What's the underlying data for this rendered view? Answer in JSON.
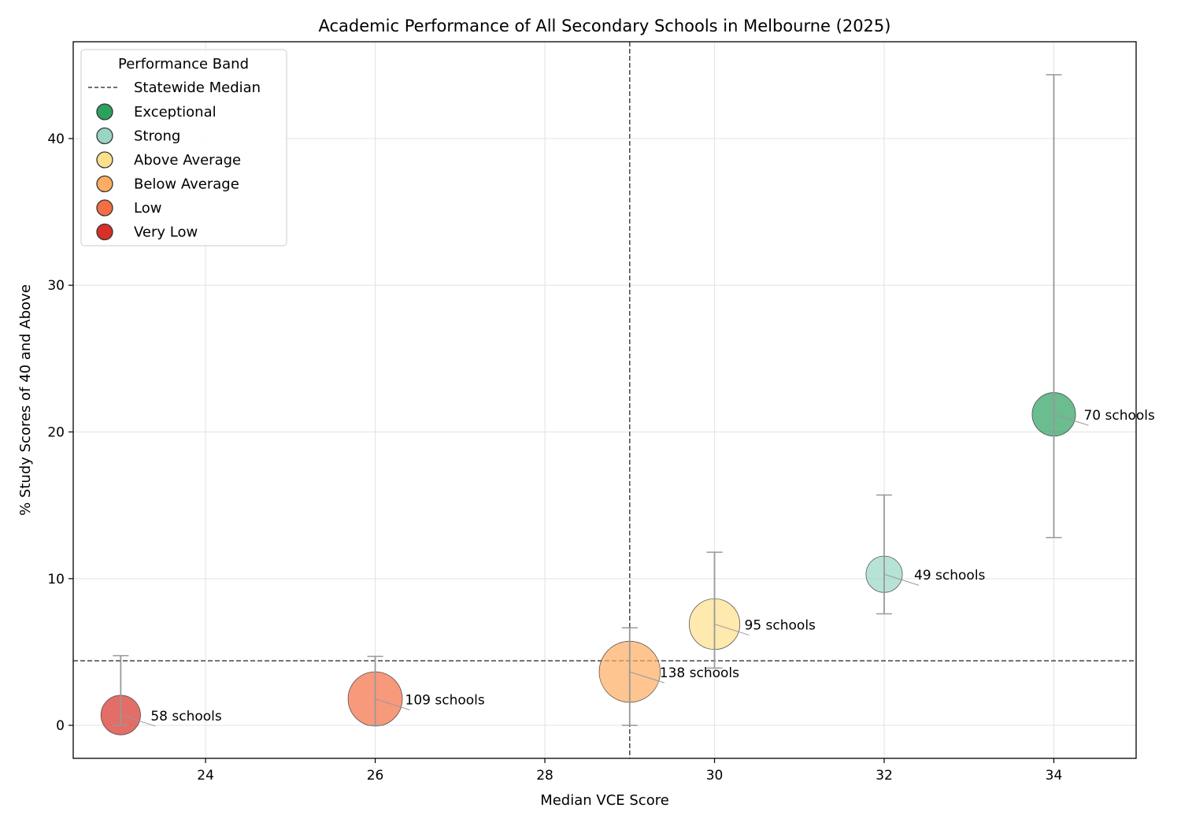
{
  "chart_data": {
    "type": "scatter",
    "title": "Academic Performance of All Secondary Schools in Melbourne (2025)",
    "xlabel": "Median VCE Score",
    "ylabel": "% Study Scores of 40 and Above",
    "xlim": [
      22.44,
      34.97
    ],
    "ylim": [
      -2.25,
      46.6
    ],
    "xticks": [
      24,
      26,
      28,
      30,
      32,
      34
    ],
    "yticks": [
      0,
      10,
      20,
      30,
      40
    ],
    "grid": true,
    "legend": {
      "title": "Performance Band",
      "placement": "top-left",
      "median_label": "Statewide Median",
      "entries": [
        {
          "label": "Exceptional",
          "color": "#2ca05f"
        },
        {
          "label": "Strong",
          "color": "#99d5c4"
        },
        {
          "label": "Above Average",
          "color": "#fde08b"
        },
        {
          "label": "Below Average",
          "color": "#fdad61"
        },
        {
          "label": "Low",
          "color": "#f46d43"
        },
        {
          "label": "Very Low",
          "color": "#d73027"
        }
      ]
    },
    "statewide_median": {
      "x": 29,
      "y": 4.4
    },
    "points": [
      {
        "band": "Very Low",
        "x": 23,
        "y": 0.7,
        "err_low": 0,
        "err_high": 4.75,
        "schools": 58,
        "label": "58 schools"
      },
      {
        "band": "Low",
        "x": 26,
        "y": 1.8,
        "err_low": 0,
        "err_high": 4.7,
        "schools": 109,
        "label": "109 schools"
      },
      {
        "band": "Below Average",
        "x": 29,
        "y": 3.65,
        "err_low": 0,
        "err_high": 6.65,
        "schools": 138,
        "label": "138 schools"
      },
      {
        "band": "Above Average",
        "x": 30,
        "y": 6.9,
        "err_low": 3.9,
        "err_high": 11.8,
        "schools": 95,
        "label": "95 schools"
      },
      {
        "band": "Strong",
        "x": 32,
        "y": 10.3,
        "err_low": 7.6,
        "err_high": 15.7,
        "schools": 49,
        "label": "49 schools"
      },
      {
        "band": "Exceptional",
        "x": 34,
        "y": 21.2,
        "err_low": 12.8,
        "err_high": 44.35,
        "schools": 70,
        "label": "70 schools"
      }
    ]
  }
}
